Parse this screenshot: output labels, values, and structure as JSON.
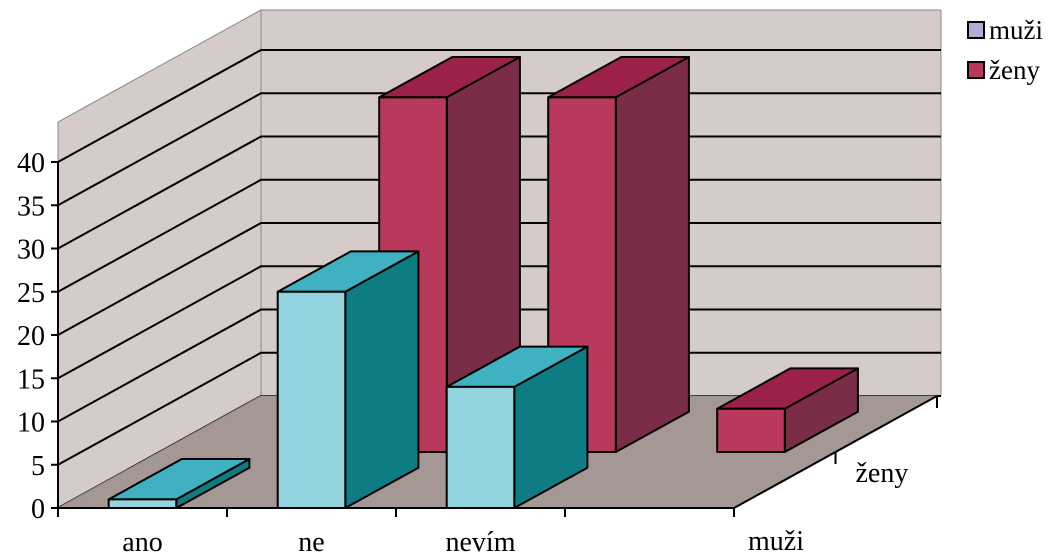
{
  "chart_data": {
    "type": "bar",
    "subtype": "3d-column-depth",
    "categories": [
      "ano",
      "ne",
      "nevím",
      ""
    ],
    "series": [
      {
        "name": "muži",
        "values": [
          1,
          25,
          14,
          0
        ],
        "color": "#93D4DE"
      },
      {
        "name": "ženy",
        "values": [
          0,
          41,
          41,
          5
        ],
        "color": "#B8395B"
      }
    ],
    "depth_labels": [
      "muži",
      "ženy"
    ],
    "y_ticks": [
      0,
      5,
      10,
      15,
      20,
      25,
      30,
      35,
      40
    ],
    "ylim": [
      0,
      40
    ],
    "grid": true,
    "legend_position": "top-right",
    "legend": [
      {
        "label": "muži",
        "swatch_color": "#B8A9D6"
      },
      {
        "label": "ženy",
        "swatch_color": "#B8395B"
      }
    ],
    "wall_color": "#D5CCCA",
    "floor_color": "#A59894"
  }
}
